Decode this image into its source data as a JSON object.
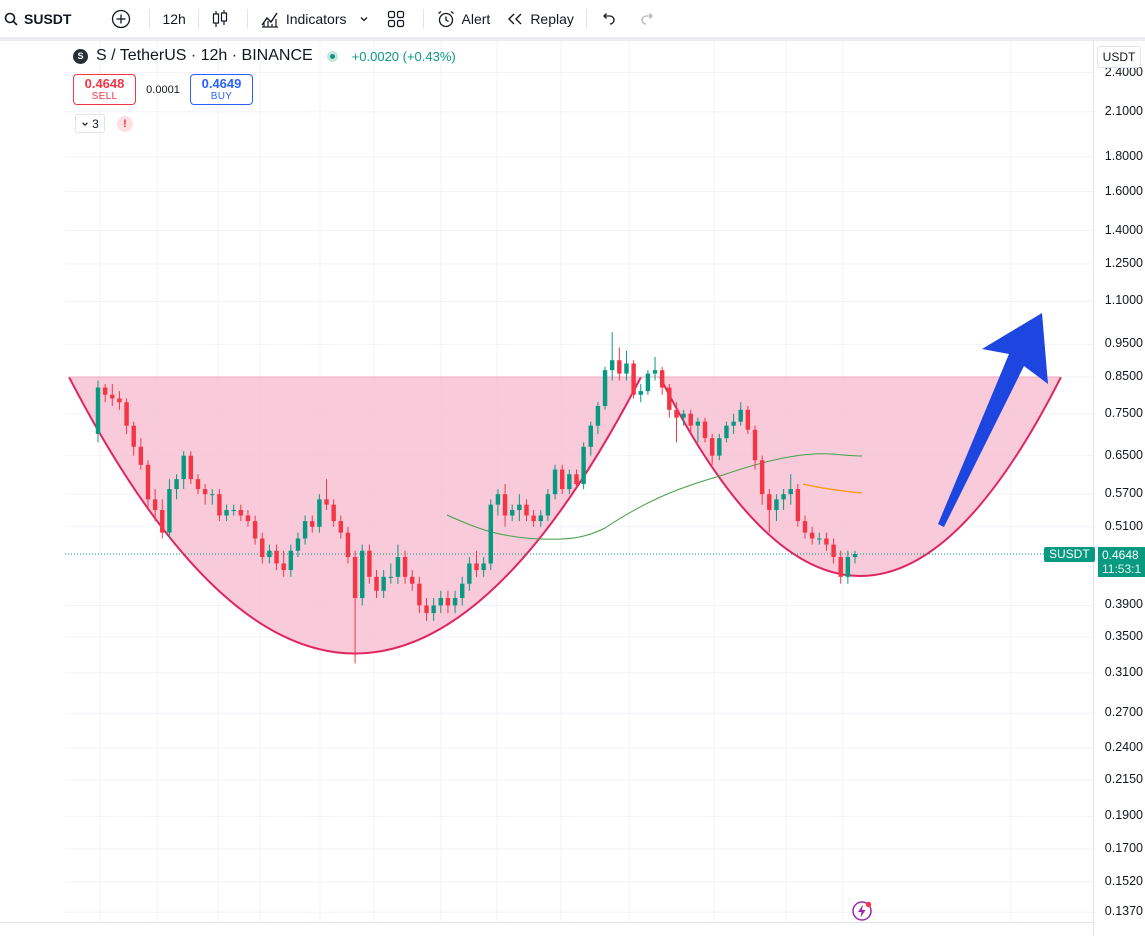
{
  "toolbar": {
    "symbol": "SUSDT",
    "interval": "12h",
    "indicators_label": "Indicators",
    "alert_label": "Alert",
    "replay_label": "Replay"
  },
  "legend": {
    "title": "S / TetherUS · 12h · BINANCE",
    "change": "+0.0020 (+0.43%)",
    "sell_price": "0.4648",
    "sell_label": "SELL",
    "buy_price": "0.4649",
    "buy_label": "BUY",
    "spread": "0.0001",
    "indicator_count": "3"
  },
  "price_scale": {
    "unit": "USDT",
    "ticks": [
      "2.4000",
      "2.1000",
      "1.8000",
      "1.6000",
      "1.4000",
      "1.2500",
      "1.1000",
      "0.9500",
      "0.8500",
      "0.7500",
      "0.6500",
      "0.5700",
      "0.5100",
      "0.3900",
      "0.3500",
      "0.3100",
      "0.2700",
      "0.2400",
      "0.2150",
      "0.1900",
      "0.1700",
      "0.1520",
      "0.1370"
    ],
    "current_tag": "SUSDT",
    "current_price": "0.4648",
    "countdown": "11:53:1"
  },
  "colors": {
    "up": "#089981",
    "down": "#f23645",
    "cup_fill": "#f7c1d3",
    "cup_stroke": "#e0245e",
    "arrow": "#1d46e0",
    "ma_green": "#43a047",
    "ma_orange": "#ff9800"
  },
  "chart_data": {
    "type": "candlestick",
    "log_scale": true,
    "ylim": [
      0.13,
      2.5
    ],
    "grid": true,
    "candles": [
      [
        0.7,
        0.84,
        0.68,
        0.82
      ],
      [
        0.82,
        0.83,
        0.78,
        0.8
      ],
      [
        0.8,
        0.83,
        0.77,
        0.79
      ],
      [
        0.79,
        0.81,
        0.76,
        0.78
      ],
      [
        0.78,
        0.79,
        0.7,
        0.72
      ],
      [
        0.72,
        0.73,
        0.65,
        0.67
      ],
      [
        0.67,
        0.69,
        0.62,
        0.63
      ],
      [
        0.63,
        0.64,
        0.54,
        0.56
      ],
      [
        0.56,
        0.58,
        0.52,
        0.54
      ],
      [
        0.54,
        0.56,
        0.49,
        0.5
      ],
      [
        0.5,
        0.6,
        0.49,
        0.58
      ],
      [
        0.58,
        0.61,
        0.56,
        0.6
      ],
      [
        0.6,
        0.66,
        0.58,
        0.65
      ],
      [
        0.65,
        0.66,
        0.59,
        0.6
      ],
      [
        0.6,
        0.61,
        0.57,
        0.58
      ],
      [
        0.58,
        0.59,
        0.55,
        0.57
      ],
      [
        0.57,
        0.58,
        0.55,
        0.57
      ],
      [
        0.57,
        0.58,
        0.52,
        0.53
      ],
      [
        0.53,
        0.55,
        0.52,
        0.54
      ],
      [
        0.54,
        0.55,
        0.53,
        0.54
      ],
      [
        0.54,
        0.55,
        0.52,
        0.53
      ],
      [
        0.53,
        0.54,
        0.51,
        0.52
      ],
      [
        0.52,
        0.53,
        0.48,
        0.49
      ],
      [
        0.49,
        0.5,
        0.45,
        0.46
      ],
      [
        0.46,
        0.48,
        0.45,
        0.47
      ],
      [
        0.47,
        0.48,
        0.44,
        0.45
      ],
      [
        0.45,
        0.47,
        0.43,
        0.44
      ],
      [
        0.44,
        0.48,
        0.43,
        0.47
      ],
      [
        0.47,
        0.5,
        0.46,
        0.49
      ],
      [
        0.49,
        0.53,
        0.48,
        0.52
      ],
      [
        0.52,
        0.53,
        0.5,
        0.51
      ],
      [
        0.51,
        0.57,
        0.5,
        0.56
      ],
      [
        0.56,
        0.6,
        0.54,
        0.55
      ],
      [
        0.55,
        0.56,
        0.51,
        0.52
      ],
      [
        0.52,
        0.53,
        0.49,
        0.5
      ],
      [
        0.5,
        0.51,
        0.45,
        0.46
      ],
      [
        0.46,
        0.47,
        0.32,
        0.4
      ],
      [
        0.4,
        0.48,
        0.39,
        0.47
      ],
      [
        0.47,
        0.48,
        0.42,
        0.43
      ],
      [
        0.43,
        0.44,
        0.4,
        0.41
      ],
      [
        0.41,
        0.44,
        0.4,
        0.43
      ],
      [
        0.43,
        0.45,
        0.42,
        0.43
      ],
      [
        0.43,
        0.48,
        0.42,
        0.46
      ],
      [
        0.46,
        0.47,
        0.42,
        0.43
      ],
      [
        0.43,
        0.44,
        0.41,
        0.42
      ],
      [
        0.42,
        0.43,
        0.38,
        0.39
      ],
      [
        0.39,
        0.4,
        0.37,
        0.38
      ],
      [
        0.38,
        0.4,
        0.37,
        0.39
      ],
      [
        0.39,
        0.41,
        0.38,
        0.4
      ],
      [
        0.4,
        0.41,
        0.38,
        0.39
      ],
      [
        0.39,
        0.41,
        0.38,
        0.4
      ],
      [
        0.4,
        0.43,
        0.39,
        0.42
      ],
      [
        0.42,
        0.46,
        0.41,
        0.45
      ],
      [
        0.45,
        0.47,
        0.43,
        0.44
      ],
      [
        0.44,
        0.46,
        0.43,
        0.45
      ],
      [
        0.45,
        0.56,
        0.44,
        0.55
      ],
      [
        0.55,
        0.58,
        0.53,
        0.57
      ],
      [
        0.57,
        0.59,
        0.51,
        0.53
      ],
      [
        0.53,
        0.55,
        0.52,
        0.54
      ],
      [
        0.54,
        0.57,
        0.52,
        0.55
      ],
      [
        0.55,
        0.56,
        0.52,
        0.53
      ],
      [
        0.53,
        0.54,
        0.51,
        0.52
      ],
      [
        0.52,
        0.54,
        0.51,
        0.53
      ],
      [
        0.53,
        0.58,
        0.52,
        0.57
      ],
      [
        0.57,
        0.63,
        0.56,
        0.62
      ],
      [
        0.62,
        0.63,
        0.57,
        0.58
      ],
      [
        0.58,
        0.62,
        0.57,
        0.61
      ],
      [
        0.61,
        0.62,
        0.58,
        0.59
      ],
      [
        0.59,
        0.68,
        0.58,
        0.67
      ],
      [
        0.67,
        0.73,
        0.65,
        0.72
      ],
      [
        0.72,
        0.78,
        0.7,
        0.77
      ],
      [
        0.77,
        0.88,
        0.76,
        0.87
      ],
      [
        0.87,
        0.99,
        0.84,
        0.9
      ],
      [
        0.9,
        0.94,
        0.84,
        0.86
      ],
      [
        0.86,
        0.93,
        0.84,
        0.89
      ],
      [
        0.89,
        0.9,
        0.79,
        0.8
      ],
      [
        0.8,
        0.83,
        0.78,
        0.81
      ],
      [
        0.81,
        0.87,
        0.8,
        0.86
      ],
      [
        0.86,
        0.91,
        0.84,
        0.87
      ],
      [
        0.87,
        0.88,
        0.8,
        0.82
      ],
      [
        0.82,
        0.83,
        0.74,
        0.76
      ],
      [
        0.76,
        0.78,
        0.68,
        0.74
      ],
      [
        0.74,
        0.76,
        0.72,
        0.75
      ],
      [
        0.75,
        0.76,
        0.7,
        0.72
      ],
      [
        0.72,
        0.74,
        0.68,
        0.73
      ],
      [
        0.73,
        0.74,
        0.68,
        0.69
      ],
      [
        0.69,
        0.7,
        0.63,
        0.65
      ],
      [
        0.65,
        0.7,
        0.64,
        0.69
      ],
      [
        0.69,
        0.73,
        0.68,
        0.72
      ],
      [
        0.72,
        0.75,
        0.7,
        0.73
      ],
      [
        0.73,
        0.78,
        0.72,
        0.76
      ],
      [
        0.76,
        0.77,
        0.7,
        0.71
      ],
      [
        0.71,
        0.72,
        0.62,
        0.64
      ],
      [
        0.64,
        0.65,
        0.55,
        0.57
      ],
      [
        0.57,
        0.58,
        0.5,
        0.54
      ],
      [
        0.54,
        0.57,
        0.52,
        0.56
      ],
      [
        0.56,
        0.58,
        0.54,
        0.57
      ],
      [
        0.57,
        0.61,
        0.55,
        0.58
      ],
      [
        0.58,
        0.59,
        0.51,
        0.52
      ],
      [
        0.52,
        0.53,
        0.49,
        0.5
      ],
      [
        0.5,
        0.51,
        0.48,
        0.49
      ],
      [
        0.49,
        0.5,
        0.48,
        0.49
      ],
      [
        0.49,
        0.5,
        0.47,
        0.48
      ],
      [
        0.48,
        0.49,
        0.45,
        0.46
      ],
      [
        0.46,
        0.47,
        0.42,
        0.43
      ],
      [
        0.43,
        0.47,
        0.42,
        0.46
      ],
      [
        0.46,
        0.47,
        0.45,
        0.4648
      ]
    ]
  }
}
